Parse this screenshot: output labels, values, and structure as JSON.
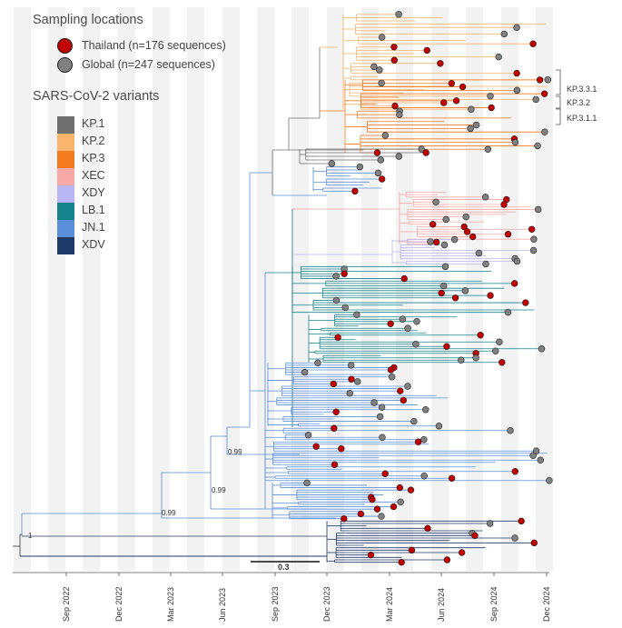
{
  "legend": {
    "sampling_title": "Sampling locations",
    "locations": [
      {
        "label": "Thailand (n=176 sequences)",
        "color": "#c00000"
      },
      {
        "label": "Global (n=247 sequences)",
        "color": "#808080"
      }
    ],
    "variants_title": "SARS-CoV-2 variants",
    "variants": [
      {
        "label": "KP.1",
        "color": "#707070"
      },
      {
        "label": "KP.2",
        "color": "#f9b46e"
      },
      {
        "label": "KP.3",
        "color": "#f47a20"
      },
      {
        "label": "XEC",
        "color": "#f7a9a8"
      },
      {
        "label": "XDY",
        "color": "#b8b6f2"
      },
      {
        "label": "LB.1",
        "color": "#17838c"
      },
      {
        "label": "JN.1",
        "color": "#5b8fd9"
      },
      {
        "label": "XDV",
        "color": "#1f3a66"
      }
    ]
  },
  "clade_labels": [
    "KP.3.3.1",
    "KP.3.2",
    "KP.3.1.1"
  ],
  "node_supports": [
    "1",
    "0.99",
    "0.99",
    "0.99"
  ],
  "scale_bar": "0.3",
  "time_axis": [
    "Sep 2022",
    "Dec 2022",
    "Mar 2023",
    "Jun 2023",
    "Sep 2023",
    "Dec 2023",
    "Mar 2024",
    "Jun 2024",
    "Sep 2024",
    "Dec 2024"
  ]
}
